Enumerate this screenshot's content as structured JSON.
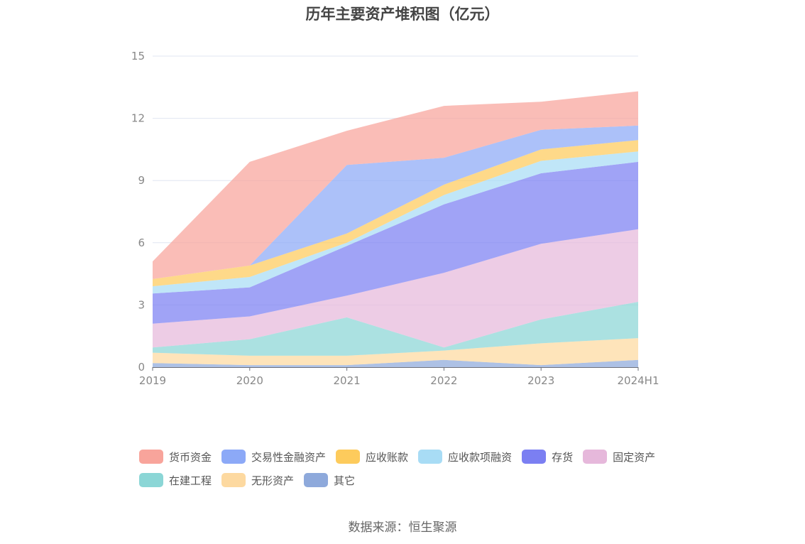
{
  "source_text": "数据来源：恒生聚源",
  "chart_data": {
    "type": "area",
    "stacked": true,
    "title": "历年主要资产堆积图（亿元）",
    "xlabel": "",
    "ylabel": "",
    "categories": [
      "2019",
      "2020",
      "2021",
      "2022",
      "2023",
      "2024H1"
    ],
    "ylim": [
      0,
      15
    ],
    "yticks": [
      0,
      3,
      6,
      9,
      12,
      15
    ],
    "grid": true,
    "legend_position": "bottom",
    "series": [
      {
        "name": "其它",
        "color": "#8ea9db",
        "values": [
          0.2,
          0.1,
          0.1,
          0.35,
          0.1,
          0.35
        ]
      },
      {
        "name": "无形资产",
        "color": "#fdd9a0",
        "values": [
          0.5,
          0.45,
          0.45,
          0.45,
          1.05,
          1.05
        ]
      },
      {
        "name": "在建工程",
        "color": "#8bd6d6",
        "values": [
          0.25,
          0.8,
          1.85,
          0.15,
          1.15,
          1.75
        ]
      },
      {
        "name": "固定资产",
        "color": "#e6b8db",
        "values": [
          1.15,
          1.1,
          1.05,
          3.6,
          3.65,
          3.5
        ]
      },
      {
        "name": "存货",
        "color": "#7b7ff2",
        "values": [
          1.45,
          1.4,
          2.4,
          3.3,
          3.4,
          3.25
        ]
      },
      {
        "name": "应收款项融资",
        "color": "#a8dcf5",
        "values": [
          0.35,
          0.5,
          0.15,
          0.45,
          0.6,
          0.5
        ]
      },
      {
        "name": "应收账款",
        "color": "#fdcb5c",
        "values": [
          0.35,
          0.55,
          0.45,
          0.5,
          0.55,
          0.55
        ]
      },
      {
        "name": "交易性金融资产",
        "color": "#8ca9f7",
        "values": [
          0,
          0,
          3.3,
          1.3,
          0.95,
          0.7
        ]
      },
      {
        "name": "货币资金",
        "color": "#f8a49b",
        "values": [
          0.85,
          5.0,
          1.65,
          2.5,
          1.35,
          1.65
        ]
      }
    ],
    "legend_order": [
      "货币资金",
      "交易性金融资产",
      "应收账款",
      "应收款项融资",
      "存货",
      "固定资产",
      "在建工程",
      "无形资产",
      "其它"
    ]
  }
}
